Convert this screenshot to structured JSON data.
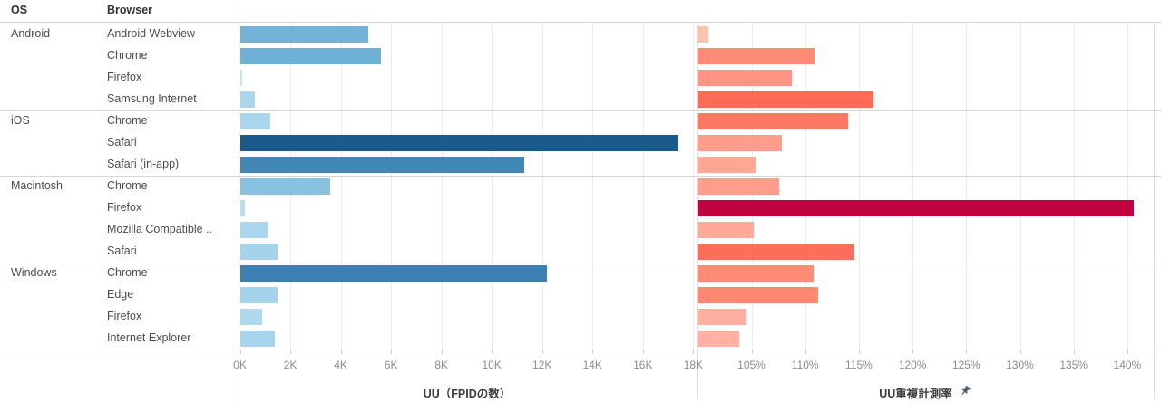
{
  "table": {
    "os_header": "OS",
    "browser_header": "Browser"
  },
  "colors": {
    "separator": "#d6d6d6",
    "gridline": "#ebebeb",
    "axis_text": "#8c8c8c",
    "label_text": "#4d4d4d",
    "pin_icon": "#4e5a68"
  },
  "chart_data": {
    "type": "bar",
    "orientation": "horizontal",
    "row_headers": [
      "OS",
      "Browser"
    ],
    "rows": [
      {
        "group": "Android",
        "browser": "Android Webview",
        "uu_k": 5.1,
        "uu_color": "#74b3d8",
        "rate_pct": 101.0,
        "rate_color": "#ffc1b2"
      },
      {
        "group": "Android",
        "browser": "Chrome",
        "uu_k": 5.6,
        "uu_color": "#6fb0d6",
        "rate_pct": 110.9,
        "rate_color": "#ff8a75"
      },
      {
        "group": "Android",
        "browser": "Firefox",
        "uu_k": 0.1,
        "uu_color": "#c6e4f4",
        "rate_pct": 108.8,
        "rate_color": "#ff9484"
      },
      {
        "group": "Android",
        "browser": "Samsung Internet",
        "uu_k": 0.6,
        "uu_color": "#abd6ee",
        "rate_pct": 116.4,
        "rate_color": "#fe6c59"
      },
      {
        "group": "iOS",
        "browser": "Chrome",
        "uu_k": 1.2,
        "uu_color": "#a9d5ed",
        "rate_pct": 114.0,
        "rate_color": "#fd7863"
      },
      {
        "group": "iOS",
        "browser": "Safari",
        "uu_k": 17.4,
        "uu_color": "#1b5a89",
        "rate_pct": 107.8,
        "rate_color": "#ff9d8c"
      },
      {
        "group": "iOS",
        "browser": "Safari (in-app)",
        "uu_k": 11.3,
        "uu_color": "#4286b4",
        "rate_pct": 105.4,
        "rate_color": "#ffa695"
      },
      {
        "group": "Macintosh",
        "browser": "Chrome",
        "uu_k": 3.6,
        "uu_color": "#89c1e1",
        "rate_pct": 107.6,
        "rate_color": "#ff9d8c"
      },
      {
        "group": "Macintosh",
        "browser": "Firefox",
        "uu_k": 0.2,
        "uu_color": "#b7ddf2",
        "rate_pct": 140.6,
        "rate_color": "#bf0441"
      },
      {
        "group": "Macintosh",
        "browser": "Mozilla Compatible ..",
        "uu_k": 1.1,
        "uu_color": "#aad5ee",
        "rate_pct": 105.2,
        "rate_color": "#ffa998"
      },
      {
        "group": "Macintosh",
        "browser": "Safari",
        "uu_k": 1.5,
        "uu_color": "#a6d3ec",
        "rate_pct": 114.6,
        "rate_color": "#fd6f5c"
      },
      {
        "group": "Windows",
        "browser": "Chrome",
        "uu_k": 12.2,
        "uu_color": "#3c80b1",
        "rate_pct": 110.8,
        "rate_color": "#ff8b76"
      },
      {
        "group": "Windows",
        "browser": "Edge",
        "uu_k": 1.5,
        "uu_color": "#a6d3ec",
        "rate_pct": 111.2,
        "rate_color": "#ff8873"
      },
      {
        "group": "Windows",
        "browser": "Firefox",
        "uu_k": 0.9,
        "uu_color": "#aed8ef",
        "rate_pct": 104.5,
        "rate_color": "#ffaea0"
      },
      {
        "group": "Windows",
        "browser": "Internet Explorer",
        "uu_k": 1.4,
        "uu_color": "#a7d4ed",
        "rate_pct": 103.9,
        "rate_color": "#ffb1a4"
      }
    ],
    "left_axis": {
      "title": "UU（FPIDの数）",
      "unit": "K",
      "min": 0,
      "max": 18.2,
      "tick_values": [
        0,
        2,
        4,
        6,
        8,
        10,
        12,
        14,
        16,
        18
      ],
      "tick_labels": [
        "0K",
        "2K",
        "4K",
        "6K",
        "8K",
        "10K",
        "12K",
        "14K",
        "16K",
        "18K"
      ]
    },
    "right_axis": {
      "title": "UU重複計測率",
      "unit": "%",
      "min": 100,
      "max": 141,
      "tick_values": [
        105,
        110,
        115,
        120,
        125,
        130,
        135,
        140
      ],
      "tick_labels": [
        "105%",
        "110%",
        "115%",
        "120%",
        "125%",
        "130%",
        "135%",
        "140%"
      ],
      "pinned": true
    }
  }
}
